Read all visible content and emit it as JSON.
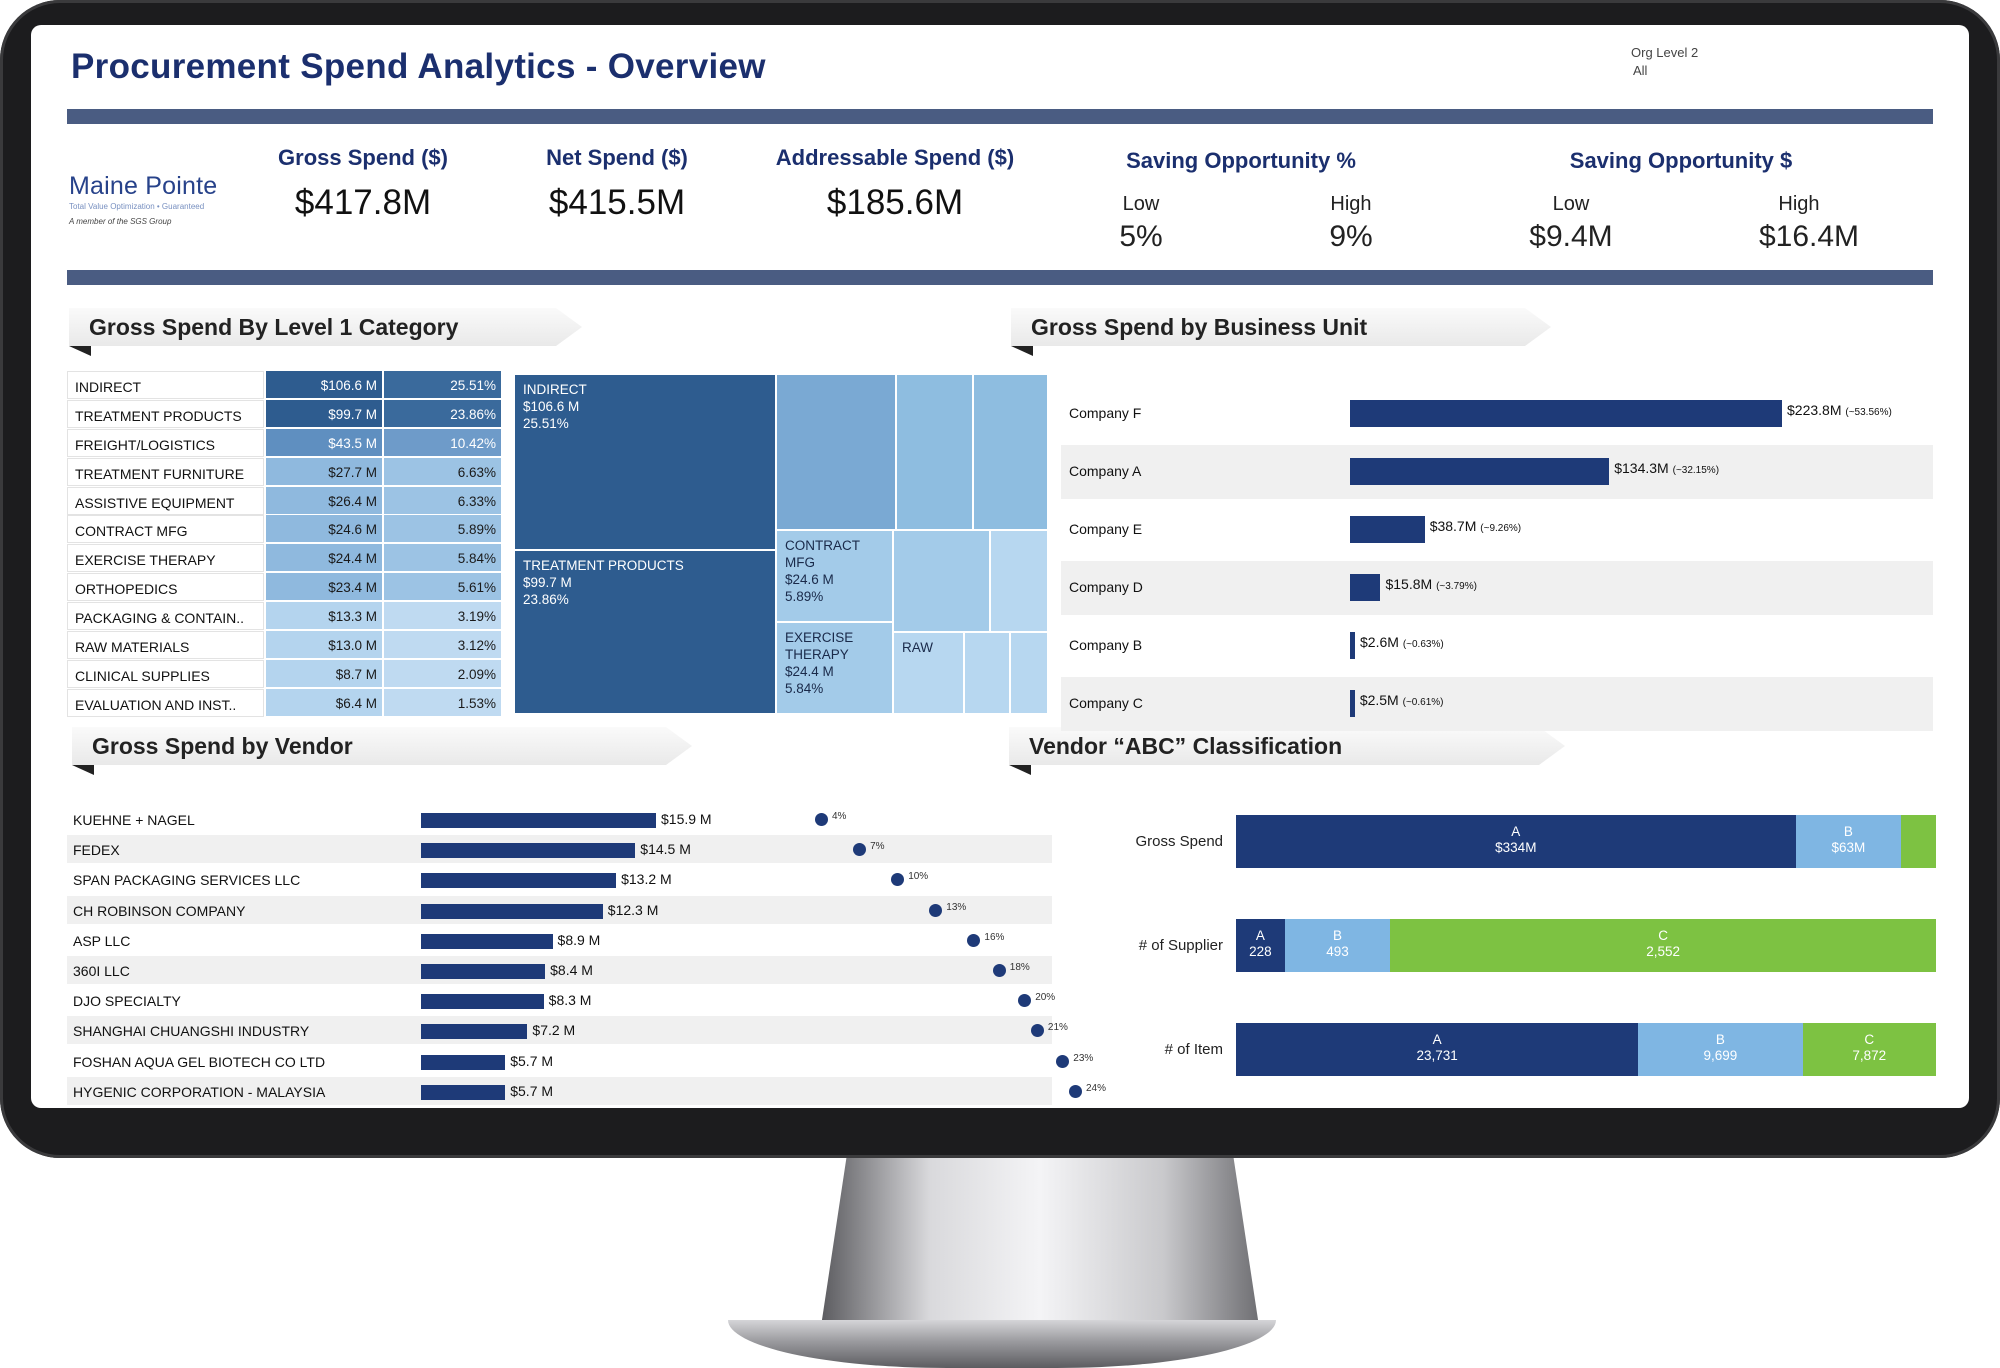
{
  "header": {
    "title": "Procurement Spend Analytics - Overview",
    "filter_label": "Org Level 2",
    "filter_value": "All"
  },
  "logo": {
    "name": "Maine Pointe",
    "tagline": "Total Value Optimization • Guaranteed",
    "member": "A member of the SGS Group"
  },
  "kpis": {
    "gross_label": "Gross Spend ($)",
    "gross_value": "$417.8M",
    "net_label": "Net Spend ($)",
    "net_value": "$415.5M",
    "addr_label": "Addressable Spend ($)",
    "addr_value": "$185.6M",
    "sop_label": "Saving Opportunity %",
    "sop_low_label": "Low",
    "sop_low": "5%",
    "sop_high_label": "High",
    "sop_high": "9%",
    "sod_label": "Saving Opportunity $",
    "sod_low_label": "Low",
    "sod_low": "$9.4M",
    "sod_high_label": "High",
    "sod_high": "$16.4M"
  },
  "sections": {
    "category": "Gross Spend By Level 1 Category",
    "business_unit": "Gross Spend by Business Unit",
    "vendor": "Gross Spend by Vendor",
    "abc": "Vendor “ABC” Classification"
  },
  "colors": {
    "navy": "#1e3a78",
    "mid_blue": "#2e5c8f",
    "light_blue": "#7fb6e3",
    "green": "#7dc242",
    "title_blue": "#1b2f6e"
  },
  "categories": [
    {
      "name": "INDIRECT",
      "amount": "$106.6 M",
      "percent": "25.51%",
      "share": 25.51
    },
    {
      "name": "TREATMENT PRODUCTS",
      "amount": "$99.7 M",
      "percent": "23.86%",
      "share": 23.86
    },
    {
      "name": "FREIGHT/LOGISTICS",
      "amount": "$43.5 M",
      "percent": "10.42%",
      "share": 10.42
    },
    {
      "name": "TREATMENT FURNITURE",
      "amount": "$27.7 M",
      "percent": "6.63%",
      "share": 6.63
    },
    {
      "name": "ASSISTIVE EQUIPMENT",
      "amount": "$26.4 M",
      "percent": "6.33%",
      "share": 6.33
    },
    {
      "name": "CONTRACT MFG",
      "amount": "$24.6 M",
      "percent": "5.89%",
      "share": 5.89
    },
    {
      "name": "EXERCISE THERAPY",
      "amount": "$24.4 M",
      "percent": "5.84%",
      "share": 5.84
    },
    {
      "name": "ORTHOPEDICS",
      "amount": "$23.4 M",
      "percent": "5.61%",
      "share": 5.61
    },
    {
      "name": "PACKAGING & CONTAIN..",
      "amount": "$13.3 M",
      "percent": "3.19%",
      "share": 3.19
    },
    {
      "name": "RAW MATERIALS",
      "amount": "$13.0 M",
      "percent": "3.12%",
      "share": 3.12
    },
    {
      "name": "CLINICAL SUPPLIES",
      "amount": "$8.7 M",
      "percent": "2.09%",
      "share": 2.09
    },
    {
      "name": "EVALUATION AND INST..",
      "amount": "$6.4 M",
      "percent": "1.53%",
      "share": 1.53
    }
  ],
  "treemap": [
    {
      "label": "INDIRECT\n$106.6 M\n25.51%",
      "share": 25.51
    },
    {
      "label": "TREATMENT PRODUCTS\n$99.7 M\n23.86%",
      "share": 23.86
    },
    {
      "label": "",
      "share": 10.42
    },
    {
      "label": "",
      "share": 6.63
    },
    {
      "label": "",
      "share": 6.33
    },
    {
      "label": "CONTRACT\nMFG\n$24.6 M\n5.89%",
      "share": 5.89
    },
    {
      "label": "EXERCISE\nTHERAPY\n$24.4 M\n5.84%",
      "share": 5.84
    },
    {
      "label": "",
      "share": 5.61
    },
    {
      "label": "",
      "share": 3.19
    },
    {
      "label": "RAW",
      "share": 3.12
    },
    {
      "label": "",
      "share": 2.09
    },
    {
      "label": "",
      "share": 1.53
    }
  ],
  "business_units": [
    {
      "name": "Company F",
      "value": 223.8,
      "label": "$223.8M",
      "pct": "(~53.56%)"
    },
    {
      "name": "Company A",
      "value": 134.3,
      "label": "$134.3M",
      "pct": "(~32.15%)"
    },
    {
      "name": "Company E",
      "value": 38.7,
      "label": "$38.7M",
      "pct": "(~9.26%)"
    },
    {
      "name": "Company D",
      "value": 15.8,
      "label": "$15.8M",
      "pct": "(~3.79%)"
    },
    {
      "name": "Company B",
      "value": 2.6,
      "label": "$2.6M",
      "pct": "(~0.63%)"
    },
    {
      "name": "Company C",
      "value": 2.5,
      "label": "$2.5M",
      "pct": "(~0.61%)"
    }
  ],
  "vendors": [
    {
      "name": "KUEHNE + NAGEL",
      "value": 15.9,
      "label": "$15.9 M",
      "cum": 4,
      "cum_label": "4%"
    },
    {
      "name": "FEDEX",
      "value": 14.5,
      "label": "$14.5 M",
      "cum": 7,
      "cum_label": "7%"
    },
    {
      "name": "SPAN PACKAGING SERVICES LLC",
      "value": 13.2,
      "label": "$13.2 M",
      "cum": 10,
      "cum_label": "10%"
    },
    {
      "name": "CH ROBINSON COMPANY",
      "value": 12.3,
      "label": "$12.3 M",
      "cum": 13,
      "cum_label": "13%"
    },
    {
      "name": "ASP LLC",
      "value": 8.9,
      "label": "$8.9 M",
      "cum": 16,
      "cum_label": "16%"
    },
    {
      "name": "360I LLC",
      "value": 8.4,
      "label": "$8.4 M",
      "cum": 18,
      "cum_label": "18%"
    },
    {
      "name": "DJO SPECIALTY",
      "value": 8.3,
      "label": "$8.3 M",
      "cum": 20,
      "cum_label": "20%"
    },
    {
      "name": "SHANGHAI CHUANGSHI INDUSTRY",
      "value": 7.2,
      "label": "$7.2 M",
      "cum": 21,
      "cum_label": "21%"
    },
    {
      "name": "FOSHAN AQUA GEL BIOTECH CO LTD",
      "value": 5.7,
      "label": "$5.7 M",
      "cum": 23,
      "cum_label": "23%"
    },
    {
      "name": "HYGENIC CORPORATION - MALAYSIA",
      "value": 5.7,
      "label": "$5.7 M",
      "cum": 24,
      "cum_label": "24%"
    }
  ],
  "abc": [
    {
      "label": "Gross Spend",
      "segments": [
        {
          "class": "A",
          "value": 334,
          "text": "$334M"
        },
        {
          "class": "B",
          "value": 63,
          "text": "$63M"
        },
        {
          "class": "C",
          "value": 20.8,
          "text": ""
        }
      ]
    },
    {
      "label": "# of Supplier",
      "segments": [
        {
          "class": "A",
          "value": 228,
          "text": "228"
        },
        {
          "class": "B",
          "value": 493,
          "text": "493"
        },
        {
          "class": "C",
          "value": 2552,
          "text": "2,552"
        }
      ]
    },
    {
      "label": "# of Item",
      "segments": [
        {
          "class": "A",
          "value": 23731,
          "text": "23,731"
        },
        {
          "class": "B",
          "value": 9699,
          "text": "9,699"
        },
        {
          "class": "C",
          "value": 7872,
          "text": "7,872"
        }
      ]
    }
  ]
}
